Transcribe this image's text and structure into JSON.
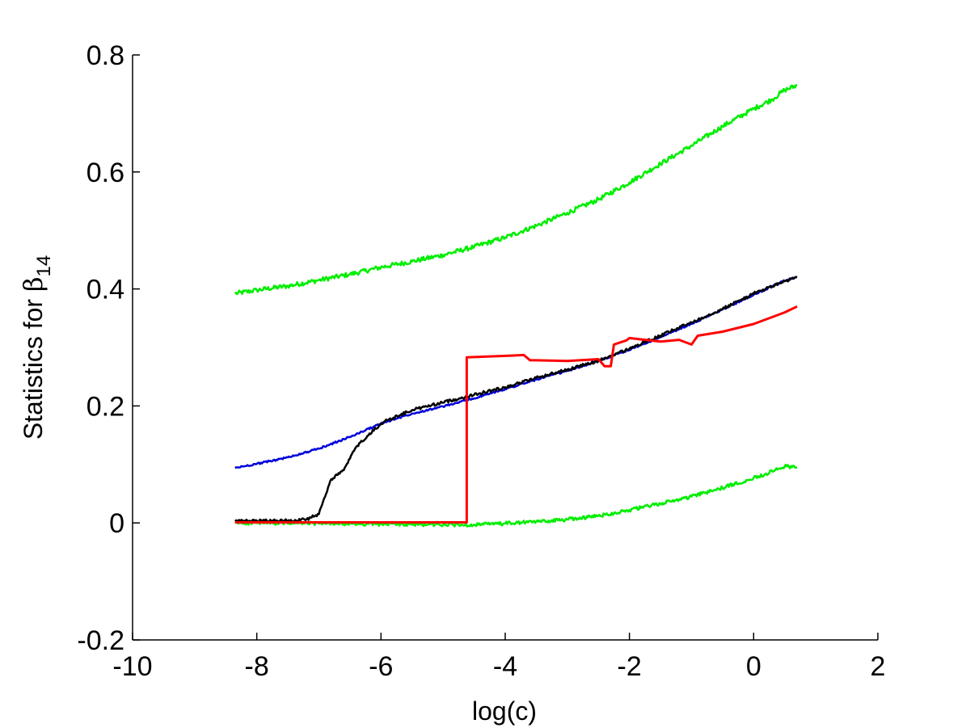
{
  "chart_data": {
    "type": "line",
    "title": "",
    "xlabel": "log(c)",
    "ylabel": {
      "text": "Statistics for ",
      "symbol": "β",
      "subscript": "14"
    },
    "xlim": [
      -10,
      2
    ],
    "ylim": [
      -0.2,
      0.8
    ],
    "xticks": [
      -10,
      -8,
      -6,
      -4,
      -2,
      0,
      2
    ],
    "xtick_labels": [
      "-10",
      "-8",
      "-6",
      "-4",
      "-2",
      "0",
      "2"
    ],
    "yticks": [
      -0.2,
      0,
      0.2,
      0.4,
      0.6,
      0.8
    ],
    "ytick_labels": [
      "-0.2",
      "0",
      "0.2",
      "0.4",
      "0.6",
      "0.8"
    ],
    "grid": false,
    "series": [
      {
        "color": "#00ee00",
        "noise": 0.004,
        "x": [
          -8.35,
          -8,
          -7.5,
          -7,
          -6.5,
          -6,
          -5.5,
          -5,
          -4.5,
          -4,
          -3.5,
          -3,
          -2.5,
          -2,
          -1.5,
          -1,
          -0.5,
          0,
          0.3,
          0.5,
          0.7
        ],
        "values": [
          0.392,
          0.398,
          0.405,
          0.415,
          0.425,
          0.437,
          0.447,
          0.458,
          0.472,
          0.488,
          0.508,
          0.53,
          0.553,
          0.582,
          0.614,
          0.645,
          0.678,
          0.708,
          0.724,
          0.74,
          0.748
        ]
      },
      {
        "color": "#00ee00",
        "noise": 0.003,
        "x": [
          -8.35,
          -8,
          -7,
          -6,
          -5,
          -4.5,
          -4,
          -3.5,
          -3,
          -2.5,
          -2,
          -1.5,
          -1,
          -0.5,
          0,
          0.3,
          0.5,
          0.7
        ],
        "values": [
          0.0,
          0.0,
          -0.001,
          -0.002,
          -0.003,
          -0.003,
          -0.001,
          0.002,
          0.006,
          0.012,
          0.022,
          0.033,
          0.045,
          0.06,
          0.077,
          0.088,
          0.097,
          0.095
        ]
      },
      {
        "color": "#0000dd",
        "noise": 0.0015,
        "x": [
          -8.35,
          -8,
          -7.5,
          -7,
          -6.5,
          -6,
          -5.5,
          -5,
          -4.5,
          -4,
          -3.5,
          -3,
          -2.5,
          -2,
          -1.5,
          -1,
          -0.5,
          0,
          0.5,
          0.7
        ],
        "values": [
          0.094,
          0.101,
          0.112,
          0.127,
          0.147,
          0.17,
          0.187,
          0.199,
          0.213,
          0.229,
          0.245,
          0.26,
          0.277,
          0.296,
          0.318,
          0.34,
          0.365,
          0.39,
          0.414,
          0.42
        ]
      },
      {
        "color": "#000000",
        "noise": 0.0025,
        "x": [
          -8.35,
          -7.5,
          -7.2,
          -7.0,
          -6.9,
          -6.8,
          -6.6,
          -6.5,
          -6.4,
          -6.2,
          -6.0,
          -5.8,
          -5.5,
          -5.0,
          -4.5,
          -4.0,
          -3.5,
          -3.0,
          -2.5,
          -2.0,
          -1.5,
          -1.0,
          -0.5,
          0,
          0.5,
          0.7
        ],
        "values": [
          0.003,
          0.004,
          0.006,
          0.015,
          0.045,
          0.075,
          0.09,
          0.11,
          0.13,
          0.15,
          0.17,
          0.18,
          0.193,
          0.206,
          0.219,
          0.232,
          0.248,
          0.262,
          0.277,
          0.298,
          0.32,
          0.343,
          0.366,
          0.392,
          0.413,
          0.42
        ]
      },
      {
        "color": "#ff0000",
        "noise": 0.0,
        "x": [
          -8.35,
          -4.62,
          -4.62,
          -3.9,
          -3.7,
          -3.6,
          -3.5,
          -3.0,
          -2.5,
          -2.4,
          -2.3,
          -2.25,
          -2.05,
          -2.0,
          -1.5,
          -1.2,
          -1.0,
          -0.9,
          -0.5,
          0,
          0.5,
          0.7
        ],
        "values": [
          0.001,
          0.001,
          0.283,
          0.286,
          0.287,
          0.278,
          0.278,
          0.277,
          0.28,
          0.268,
          0.268,
          0.305,
          0.312,
          0.316,
          0.31,
          0.313,
          0.305,
          0.32,
          0.327,
          0.34,
          0.36,
          0.37
        ]
      }
    ]
  }
}
